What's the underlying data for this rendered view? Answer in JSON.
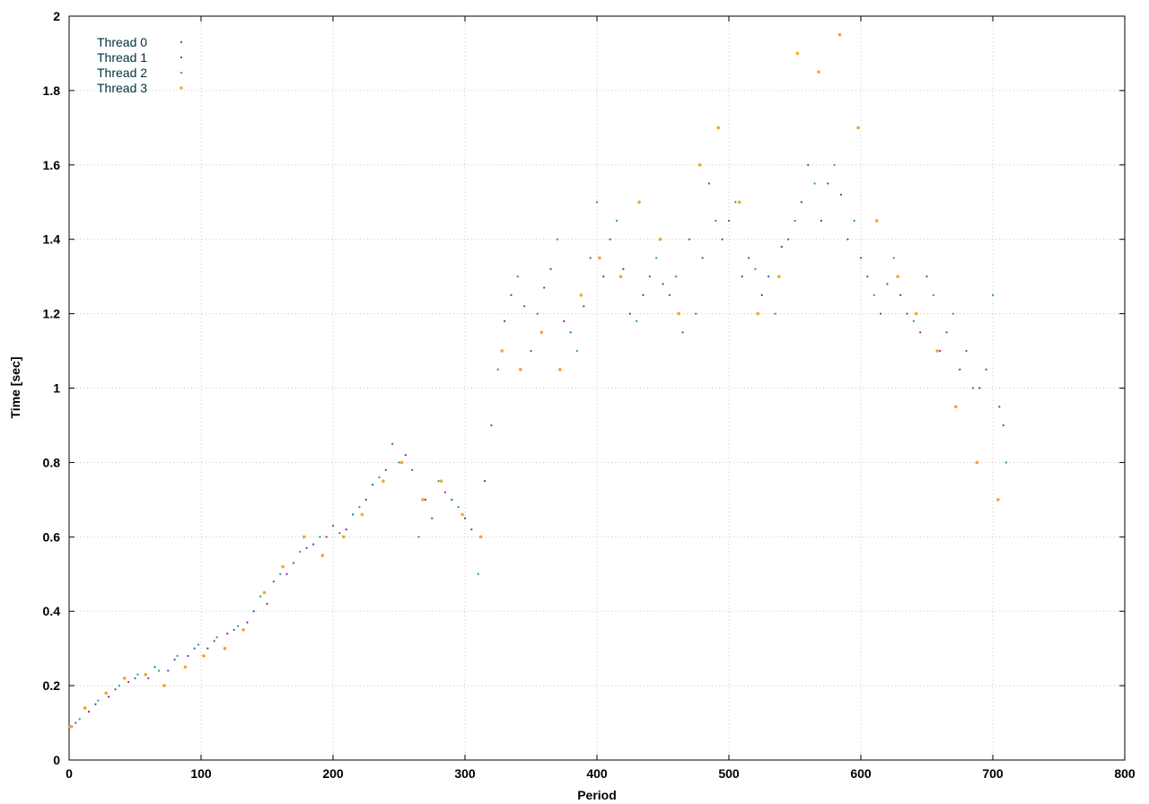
{
  "chart_data": {
    "type": "scatter",
    "title": "",
    "xlabel": "Period",
    "ylabel": "Time [sec]",
    "xlim": [
      0,
      800
    ],
    "ylim": [
      0,
      2
    ],
    "xticks": [
      0,
      100,
      200,
      300,
      400,
      500,
      600,
      700,
      800
    ],
    "yticks": [
      0,
      0.2,
      0.4,
      0.6,
      0.8,
      1,
      1.2,
      1.4,
      1.6,
      1.8,
      2
    ],
    "xtick_labels": [
      "0",
      "100",
      "200",
      "300",
      "400",
      "500",
      "600",
      "700",
      "800"
    ],
    "ytick_labels": [
      "0",
      "0.2",
      "0.4",
      "0.6",
      "0.8",
      "1",
      "1.2",
      "1.4",
      "1.6",
      "1.8",
      "2"
    ],
    "grid": true,
    "legend_position": "top-left",
    "series": [
      {
        "name": "Thread 0",
        "color": "#8b1fa8",
        "points": [
          [
            2,
            0.09
          ],
          [
            15,
            0.13
          ],
          [
            30,
            0.17
          ],
          [
            45,
            0.21
          ],
          [
            60,
            0.22
          ],
          [
            75,
            0.24
          ],
          [
            90,
            0.28
          ],
          [
            105,
            0.3
          ],
          [
            120,
            0.34
          ],
          [
            135,
            0.37
          ],
          [
            150,
            0.42
          ],
          [
            165,
            0.5
          ],
          [
            180,
            0.57
          ],
          [
            195,
            0.6
          ],
          [
            210,
            0.62
          ],
          [
            225,
            0.7
          ],
          [
            240,
            0.78
          ],
          [
            255,
            0.82
          ],
          [
            270,
            0.7
          ],
          [
            285,
            0.72
          ],
          [
            300,
            0.65
          ],
          [
            315,
            0.75
          ],
          [
            330,
            1.18
          ],
          [
            345,
            1.22
          ],
          [
            360,
            1.27
          ],
          [
            375,
            1.18
          ],
          [
            390,
            1.22
          ],
          [
            405,
            1.3
          ],
          [
            420,
            1.32
          ],
          [
            435,
            1.25
          ],
          [
            450,
            1.28
          ],
          [
            465,
            1.15
          ],
          [
            480,
            1.35
          ],
          [
            495,
            1.4
          ],
          [
            510,
            1.3
          ],
          [
            525,
            1.25
          ],
          [
            540,
            1.38
          ],
          [
            555,
            1.5
          ],
          [
            570,
            1.45
          ],
          [
            585,
            1.52
          ],
          [
            600,
            1.35
          ],
          [
            615,
            1.2
          ],
          [
            630,
            1.25
          ],
          [
            645,
            1.15
          ],
          [
            660,
            1.1
          ],
          [
            675,
            1.05
          ],
          [
            690,
            1.0
          ],
          [
            705,
            0.95
          ]
        ]
      },
      {
        "name": "Thread 1",
        "color": "#1f5fb0",
        "points": [
          [
            5,
            0.1
          ],
          [
            20,
            0.15
          ],
          [
            35,
            0.19
          ],
          [
            50,
            0.22
          ],
          [
            65,
            0.25
          ],
          [
            80,
            0.27
          ],
          [
            95,
            0.3
          ],
          [
            110,
            0.32
          ],
          [
            125,
            0.35
          ],
          [
            140,
            0.4
          ],
          [
            155,
            0.48
          ],
          [
            170,
            0.53
          ],
          [
            185,
            0.58
          ],
          [
            200,
            0.63
          ],
          [
            215,
            0.66
          ],
          [
            230,
            0.74
          ],
          [
            245,
            0.85
          ],
          [
            260,
            0.78
          ],
          [
            275,
            0.65
          ],
          [
            290,
            0.7
          ],
          [
            305,
            0.62
          ],
          [
            320,
            0.9
          ],
          [
            335,
            1.25
          ],
          [
            350,
            1.1
          ],
          [
            365,
            1.32
          ],
          [
            380,
            1.15
          ],
          [
            395,
            1.35
          ],
          [
            410,
            1.4
          ],
          [
            425,
            1.2
          ],
          [
            440,
            1.3
          ],
          [
            455,
            1.25
          ],
          [
            470,
            1.4
          ],
          [
            485,
            1.55
          ],
          [
            500,
            1.45
          ],
          [
            515,
            1.35
          ],
          [
            530,
            1.3
          ],
          [
            545,
            1.4
          ],
          [
            560,
            1.6
          ],
          [
            575,
            1.55
          ],
          [
            590,
            1.4
          ],
          [
            605,
            1.3
          ],
          [
            620,
            1.28
          ],
          [
            635,
            1.2
          ],
          [
            650,
            1.3
          ],
          [
            665,
            1.15
          ],
          [
            680,
            1.1
          ],
          [
            695,
            1.05
          ],
          [
            708,
            0.9
          ]
        ]
      },
      {
        "name": "Thread 2",
        "color": "#149c8c",
        "points": [
          [
            8,
            0.11
          ],
          [
            22,
            0.16
          ],
          [
            38,
            0.2
          ],
          [
            52,
            0.23
          ],
          [
            68,
            0.24
          ],
          [
            82,
            0.28
          ],
          [
            98,
            0.31
          ],
          [
            112,
            0.33
          ],
          [
            128,
            0.36
          ],
          [
            145,
            0.44
          ],
          [
            160,
            0.5
          ],
          [
            175,
            0.56
          ],
          [
            190,
            0.6
          ],
          [
            205,
            0.61
          ],
          [
            220,
            0.68
          ],
          [
            235,
            0.76
          ],
          [
            250,
            0.8
          ],
          [
            265,
            0.6
          ],
          [
            280,
            0.75
          ],
          [
            295,
            0.68
          ],
          [
            310,
            0.5
          ],
          [
            325,
            1.05
          ],
          [
            340,
            1.3
          ],
          [
            355,
            1.2
          ],
          [
            370,
            1.4
          ],
          [
            385,
            1.1
          ],
          [
            400,
            1.5
          ],
          [
            415,
            1.45
          ],
          [
            430,
            1.18
          ],
          [
            445,
            1.35
          ],
          [
            460,
            1.3
          ],
          [
            475,
            1.2
          ],
          [
            490,
            1.45
          ],
          [
            505,
            1.5
          ],
          [
            520,
            1.32
          ],
          [
            535,
            1.2
          ],
          [
            550,
            1.45
          ],
          [
            565,
            1.55
          ],
          [
            580,
            1.6
          ],
          [
            595,
            1.45
          ],
          [
            610,
            1.25
          ],
          [
            625,
            1.35
          ],
          [
            640,
            1.18
          ],
          [
            655,
            1.25
          ],
          [
            670,
            1.2
          ],
          [
            685,
            1.0
          ],
          [
            700,
            1.25
          ],
          [
            710,
            0.8
          ]
        ]
      },
      {
        "name": "Thread 3",
        "color": "#f5a623",
        "points": [
          [
            1,
            0.09
          ],
          [
            12,
            0.14
          ],
          [
            28,
            0.18
          ],
          [
            42,
            0.22
          ],
          [
            58,
            0.23
          ],
          [
            72,
            0.2
          ],
          [
            88,
            0.25
          ],
          [
            102,
            0.28
          ],
          [
            118,
            0.3
          ],
          [
            132,
            0.35
          ],
          [
            148,
            0.45
          ],
          [
            162,
            0.52
          ],
          [
            178,
            0.6
          ],
          [
            192,
            0.55
          ],
          [
            208,
            0.6
          ],
          [
            222,
            0.66
          ],
          [
            238,
            0.75
          ],
          [
            252,
            0.8
          ],
          [
            268,
            0.7
          ],
          [
            282,
            0.75
          ],
          [
            298,
            0.66
          ],
          [
            312,
            0.6
          ],
          [
            328,
            1.1
          ],
          [
            342,
            1.05
          ],
          [
            358,
            1.15
          ],
          [
            372,
            1.05
          ],
          [
            388,
            1.25
          ],
          [
            402,
            1.35
          ],
          [
            418,
            1.3
          ],
          [
            432,
            1.5
          ],
          [
            448,
            1.4
          ],
          [
            462,
            1.2
          ],
          [
            478,
            1.6
          ],
          [
            492,
            1.7
          ],
          [
            508,
            1.5
          ],
          [
            522,
            1.2
          ],
          [
            538,
            1.3
          ],
          [
            552,
            1.9
          ],
          [
            568,
            1.85
          ],
          [
            584,
            1.95
          ],
          [
            598,
            1.7
          ],
          [
            612,
            1.45
          ],
          [
            628,
            1.3
          ],
          [
            642,
            1.2
          ],
          [
            658,
            1.1
          ],
          [
            672,
            0.95
          ],
          [
            688,
            0.8
          ],
          [
            704,
            0.7
          ]
        ]
      }
    ]
  }
}
